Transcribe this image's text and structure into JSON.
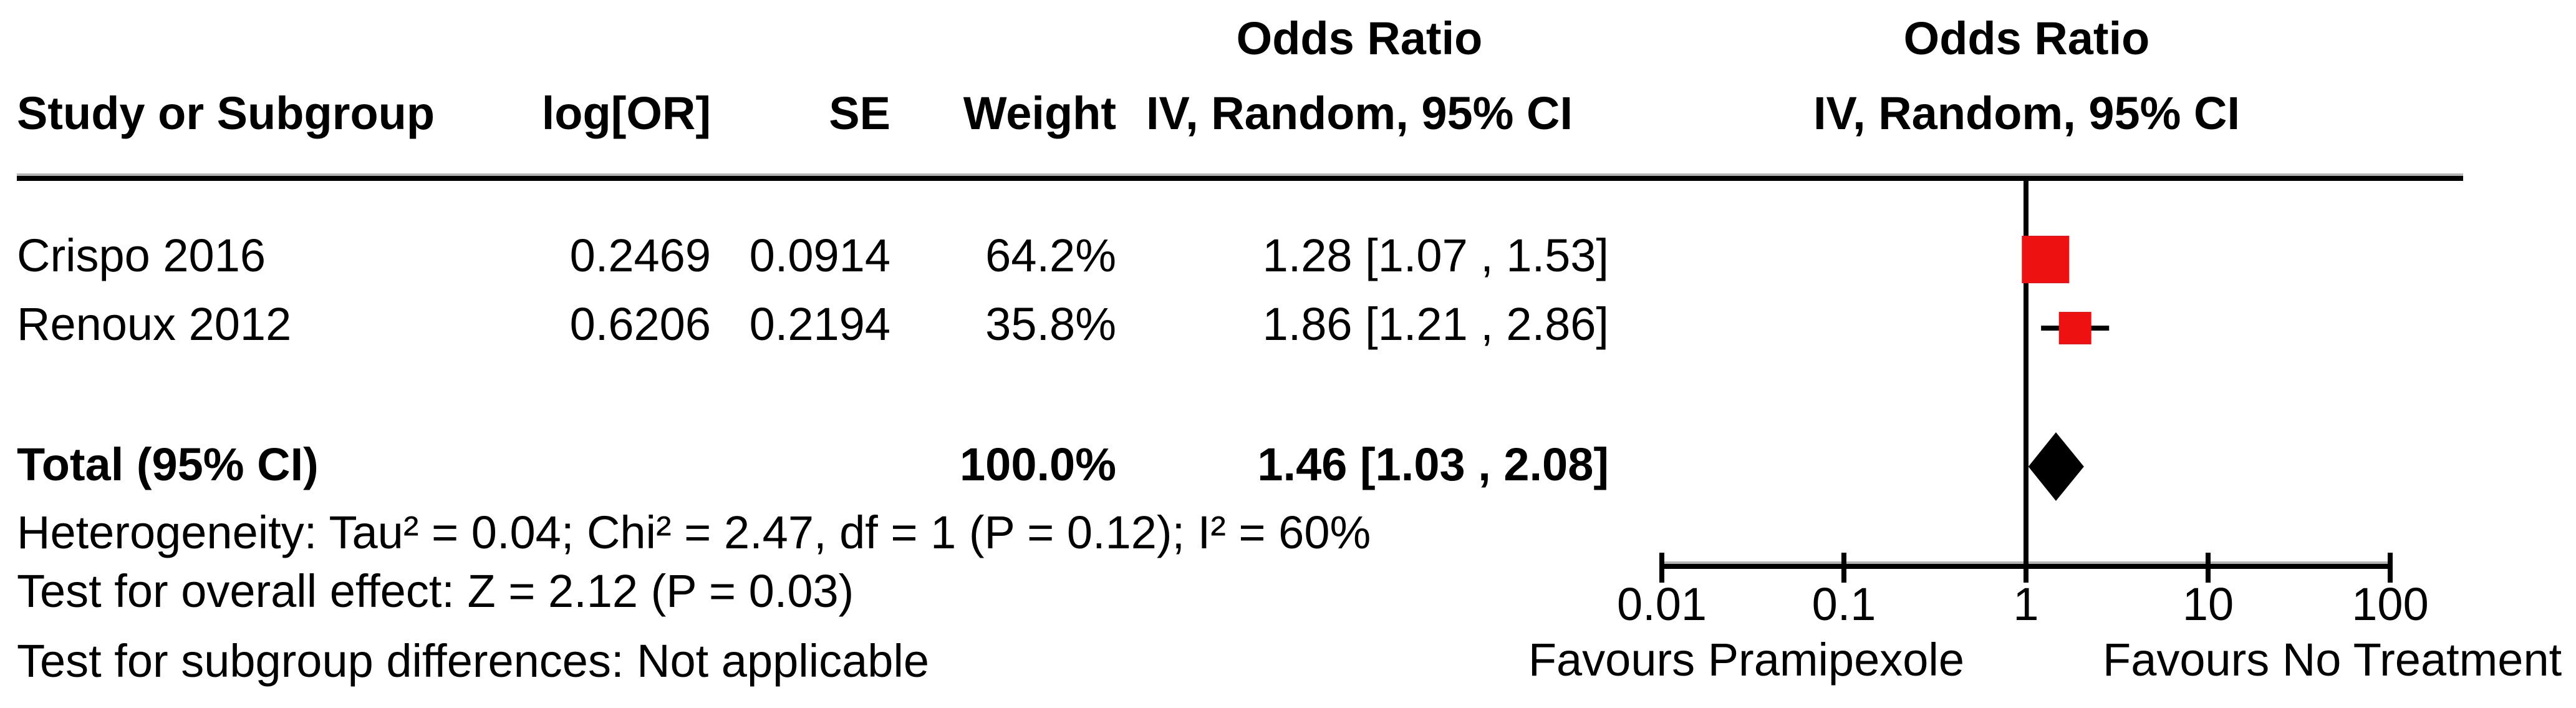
{
  "header": {
    "odds_ratio_title": "Odds Ratio",
    "method_ci": "IV, Random, 95% CI",
    "col_study": "Study or Subgroup",
    "col_log_or": "log[OR]",
    "col_se": "SE",
    "col_weight": "Weight"
  },
  "studies": [
    {
      "name": "Crispo 2016",
      "log_or": "0.2469",
      "se": "0.0914",
      "weight": "64.2%",
      "or_ci": "1.28 [1.07 , 1.53]"
    },
    {
      "name": "Renoux 2012",
      "log_or": "0.6206",
      "se": "0.2194",
      "weight": "35.8%",
      "or_ci": "1.86 [1.21 , 2.86]"
    }
  ],
  "total": {
    "label": "Total (95% CI)",
    "weight": "100.0%",
    "or_ci": "1.46 [1.03 , 2.08]"
  },
  "stats": {
    "heterogeneity": "Heterogeneity: Tau² = 0.04; Chi² = 2.47, df = 1 (P = 0.12); I² = 60%",
    "overall_effect": "Test for overall effect: Z = 2.12 (P = 0.03)",
    "subgroup": "Test for subgroup differences: Not applicable"
  },
  "axis": {
    "ticks": [
      "0.01",
      "0.1",
      "1",
      "10",
      "100"
    ],
    "favours_left": "Favours Pramipexole",
    "favours_right": "Favours No Treatment"
  },
  "colors": {
    "marker_red": "#ED1111",
    "line_black": "#000000",
    "rule_gray": "#b4b4b4"
  },
  "chart_data": {
    "type": "forest",
    "effect_measure": "Odds Ratio",
    "model": "IV, Random, 95% CI",
    "x_scale": "log10",
    "x_range": [
      0.01,
      100
    ],
    "x_ticks": [
      0.01,
      0.1,
      1,
      10,
      100
    ],
    "no_effect_line": 1,
    "studies": [
      {
        "name": "Crispo 2016",
        "log_or": 0.2469,
        "se": 0.0914,
        "weight_pct": 64.2,
        "or": 1.28,
        "ci_low": 1.07,
        "ci_high": 1.53
      },
      {
        "name": "Renoux 2012",
        "log_or": 0.6206,
        "se": 0.2194,
        "weight_pct": 35.8,
        "or": 1.86,
        "ci_low": 1.21,
        "ci_high": 2.86
      }
    ],
    "total": {
      "label": "Total (95% CI)",
      "weight_pct": 100.0,
      "or": 1.46,
      "ci_low": 1.03,
      "ci_high": 2.08
    },
    "heterogeneity": {
      "tau2": 0.04,
      "chi2": 2.47,
      "df": 1,
      "p": 0.12,
      "i2_pct": 60
    },
    "overall_effect": {
      "z": 2.12,
      "p": 0.03
    },
    "favours_left": "Favours Pramipexole",
    "favours_right": "Favours No Treatment",
    "legend_position": "none",
    "grid": false
  }
}
